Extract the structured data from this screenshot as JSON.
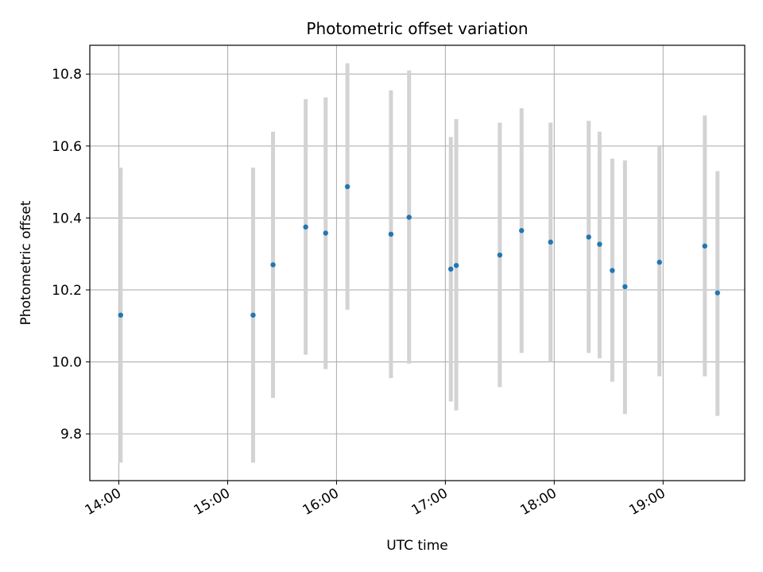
{
  "chart_data": {
    "type": "scatter",
    "title": "Photometric offset variation",
    "xlabel": "UTC time",
    "ylabel": "Photometric offset",
    "x_ticks": [
      "14:00",
      "15:00",
      "16:00",
      "17:00",
      "18:00",
      "19:00"
    ],
    "y_ticks": [
      "9.8",
      "10.0",
      "10.2",
      "10.4",
      "10.6",
      "10.8"
    ],
    "xlim": [
      "13:44",
      "19:45"
    ],
    "ylim": [
      9.67,
      10.88
    ],
    "grid": true,
    "colors": {
      "points": "#1f77b4",
      "errorbars": "#d3d3d3",
      "grid": "#b0b0b0"
    },
    "series": [
      {
        "points": [
          {
            "x": "14:01",
            "y": 10.13,
            "low": 9.72,
            "high": 10.54
          },
          {
            "x": "15:14",
            "y": 10.13,
            "low": 9.72,
            "high": 10.54
          },
          {
            "x": "15:25",
            "y": 10.27,
            "low": 9.9,
            "high": 10.64
          },
          {
            "x": "15:43",
            "y": 10.375,
            "low": 10.02,
            "high": 10.73
          },
          {
            "x": "15:54",
            "y": 10.358,
            "low": 9.98,
            "high": 10.735
          },
          {
            "x": "16:06",
            "y": 10.487,
            "low": 10.145,
            "high": 10.83
          },
          {
            "x": "16:30",
            "y": 10.355,
            "low": 9.955,
            "high": 10.755
          },
          {
            "x": "16:40",
            "y": 10.402,
            "low": 9.995,
            "high": 10.81
          },
          {
            "x": "17:03",
            "y": 10.258,
            "low": 9.89,
            "high": 10.625
          },
          {
            "x": "17:06",
            "y": 10.268,
            "low": 9.865,
            "high": 10.675
          },
          {
            "x": "17:30",
            "y": 10.297,
            "low": 9.93,
            "high": 10.665
          },
          {
            "x": "17:42",
            "y": 10.365,
            "low": 10.025,
            "high": 10.705
          },
          {
            "x": "17:58",
            "y": 10.333,
            "low": 10.0,
            "high": 10.665
          },
          {
            "x": "18:19",
            "y": 10.347,
            "low": 10.025,
            "high": 10.67
          },
          {
            "x": "18:25",
            "y": 10.327,
            "low": 10.01,
            "high": 10.64
          },
          {
            "x": "18:32",
            "y": 10.254,
            "low": 9.945,
            "high": 10.565
          },
          {
            "x": "18:39",
            "y": 10.209,
            "low": 9.855,
            "high": 10.56
          },
          {
            "x": "18:58",
            "y": 10.277,
            "low": 9.96,
            "high": 10.6
          },
          {
            "x": "19:23",
            "y": 10.322,
            "low": 9.96,
            "high": 10.685
          },
          {
            "x": "19:30",
            "y": 10.192,
            "low": 9.85,
            "high": 10.53
          }
        ]
      }
    ]
  }
}
